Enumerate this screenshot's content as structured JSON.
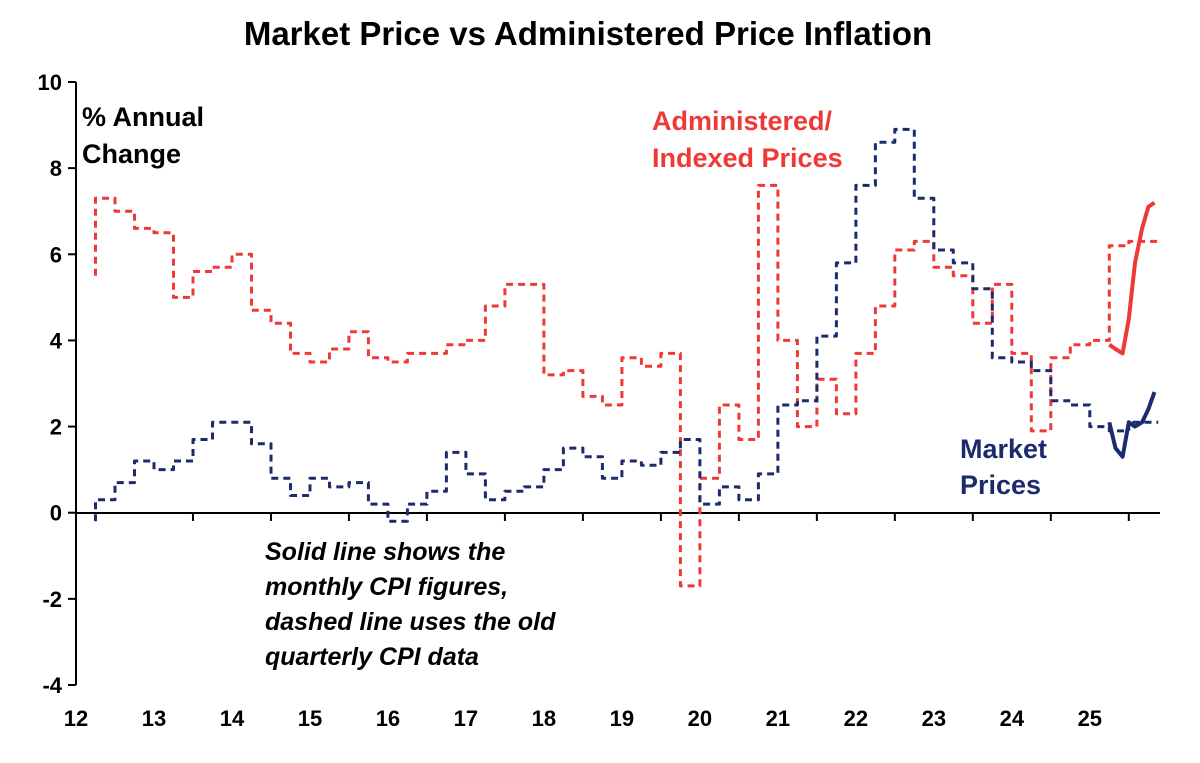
{
  "chart_data": {
    "type": "line",
    "title": "Market Price vs Administered Price Inflation",
    "ylabel_lines": [
      "% Annual",
      "Change"
    ],
    "xlabel": "",
    "xlim": [
      12,
      25.9
    ],
    "ylim": [
      -4,
      10
    ],
    "x_tick_labels": [
      "12",
      "13",
      "14",
      "15",
      "16",
      "17",
      "18",
      "19",
      "20",
      "21",
      "22",
      "23",
      "24",
      "25"
    ],
    "y_ticks": [
      -4,
      -2,
      0,
      2,
      4,
      6,
      8,
      10
    ],
    "grid": false,
    "note_lines": [
      "Solid line shows the",
      "monthly CPI figures,",
      "dashed line uses the old",
      "quarterly CPI data"
    ],
    "colors": {
      "administered": "#ee3a36",
      "market": "#1c2a6e"
    },
    "series": [
      {
        "name_lines": [
          "Administered/",
          "Indexed Prices"
        ],
        "color": "#ee3a36",
        "style": "dashed",
        "x": [
          12.25,
          12.5,
          12.75,
          13.0,
          13.25,
          13.5,
          13.75,
          14.0,
          14.25,
          14.5,
          14.75,
          15.0,
          15.25,
          15.5,
          15.75,
          16.0,
          16.25,
          16.5,
          16.75,
          17.0,
          17.25,
          17.5,
          17.75,
          18.0,
          18.25,
          18.5,
          18.75,
          19.0,
          19.25,
          19.5,
          19.75,
          20.0,
          20.25,
          20.5,
          20.75,
          21.0,
          21.25,
          21.5,
          21.75,
          22.0,
          22.25,
          22.5,
          22.75,
          23.0,
          23.25,
          23.5,
          23.75,
          24.0,
          24.25,
          24.5,
          24.75,
          25.0,
          25.25,
          25.5,
          25.75
        ],
        "values": [
          5.5,
          7.3,
          7.0,
          6.6,
          6.5,
          5.0,
          5.6,
          5.7,
          6.0,
          4.7,
          4.4,
          3.7,
          3.5,
          3.8,
          4.2,
          3.6,
          3.5,
          3.7,
          3.7,
          3.9,
          4.0,
          4.8,
          5.3,
          5.3,
          3.2,
          3.3,
          2.7,
          2.5,
          3.6,
          3.4,
          3.7,
          -1.7,
          0.8,
          2.5,
          1.7,
          7.6,
          4.0,
          2.0,
          3.1,
          2.3,
          3.7,
          4.8,
          6.1,
          6.3,
          5.7,
          5.5,
          4.4,
          5.3,
          3.7,
          1.9,
          3.6,
          3.9,
          4.0,
          6.2,
          6.3
        ]
      },
      {
        "name": "",
        "color": "#ee3a36",
        "style": "solid",
        "x": [
          25.25,
          25.33,
          25.42,
          25.5,
          25.58,
          25.67,
          25.75,
          25.83
        ],
        "values": [
          3.9,
          3.8,
          3.7,
          4.5,
          5.8,
          6.6,
          7.1,
          7.2
        ]
      },
      {
        "name_lines": [
          "Market",
          "Prices"
        ],
        "color": "#1c2a6e",
        "style": "dashed",
        "x": [
          12.25,
          12.5,
          12.75,
          13.0,
          13.25,
          13.5,
          13.75,
          14.0,
          14.25,
          14.5,
          14.75,
          15.0,
          15.25,
          15.5,
          15.75,
          16.0,
          16.25,
          16.5,
          16.75,
          17.0,
          17.25,
          17.5,
          17.75,
          18.0,
          18.25,
          18.5,
          18.75,
          19.0,
          19.25,
          19.5,
          19.75,
          20.0,
          20.25,
          20.5,
          20.75,
          21.0,
          21.25,
          21.5,
          21.75,
          22.0,
          22.25,
          22.5,
          22.75,
          23.0,
          23.25,
          23.5,
          23.75,
          24.0,
          24.25,
          24.5,
          24.75,
          25.0,
          25.25,
          25.5,
          25.75
        ],
        "values": [
          -0.2,
          0.3,
          0.7,
          1.2,
          1.0,
          1.2,
          1.7,
          2.1,
          2.1,
          1.6,
          0.8,
          0.4,
          0.8,
          0.6,
          0.7,
          0.2,
          -0.2,
          0.2,
          0.5,
          1.4,
          0.9,
          0.3,
          0.5,
          0.6,
          1.0,
          1.5,
          1.3,
          0.8,
          1.2,
          1.1,
          1.4,
          1.7,
          0.2,
          0.6,
          0.3,
          0.9,
          2.5,
          2.6,
          4.1,
          5.8,
          7.6,
          8.6,
          8.9,
          7.3,
          6.1,
          5.8,
          5.2,
          3.6,
          3.5,
          3.3,
          2.6,
          2.5,
          2.0,
          1.9,
          2.1
        ]
      },
      {
        "name": "",
        "color": "#1c2a6e",
        "style": "solid",
        "x": [
          25.25,
          25.33,
          25.42,
          25.5,
          25.58,
          25.67,
          25.75,
          25.83
        ],
        "values": [
          2.1,
          1.5,
          1.3,
          2.1,
          2.0,
          2.1,
          2.4,
          2.8
        ]
      }
    ]
  }
}
